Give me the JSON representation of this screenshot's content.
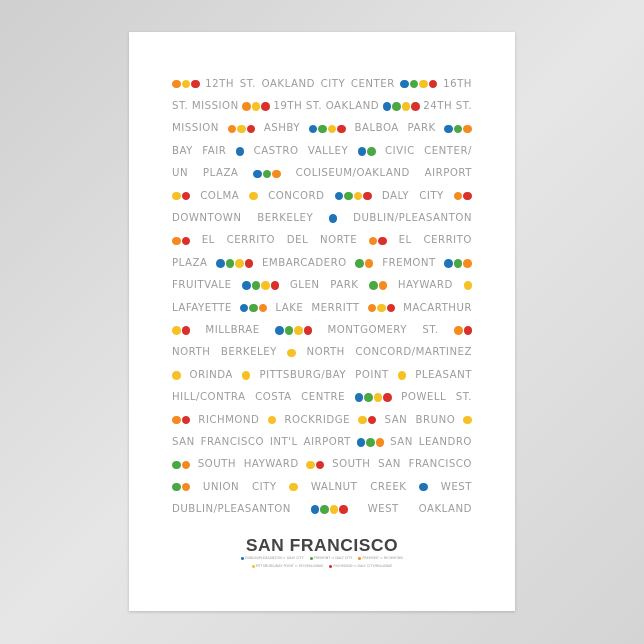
{
  "colors": {
    "b": "#1f74b8",
    "g": "#4aa843",
    "o": "#f58a1f",
    "y": "#f6c124",
    "r": "#d9302b"
  },
  "rows": [
    [
      {
        "d": "oyr"
      },
      {
        "t": "12TH ST. OAKLAND CITY CENTER"
      },
      {
        "d": "bgyr"
      },
      {
        "t": "16TH"
      }
    ],
    [
      {
        "t": "ST. MISSION"
      },
      {
        "d": "oyr"
      },
      {
        "t": "19TH ST. OAKLAND"
      },
      {
        "d": "bgyr"
      },
      {
        "t": "24TH ST."
      }
    ],
    [
      {
        "t": "MISSION"
      },
      {
        "d": "oyr"
      },
      {
        "t": "ASHBY"
      },
      {
        "d": "bgyr"
      },
      {
        "t": "BALBOA PARK"
      },
      {
        "d": "bgo"
      }
    ],
    [
      {
        "t": "BAY FAIR"
      },
      {
        "d": "b"
      },
      {
        "t": "CASTRO VALLEY"
      },
      {
        "d": "bg"
      },
      {
        "t": "CIVIC CENTER/"
      }
    ],
    [
      {
        "t": "UN PLAZA"
      },
      {
        "d": "bgo"
      },
      {
        "t": "COLISEUM/OAKLAND AIRPORT"
      }
    ],
    [
      {
        "d": "yr"
      },
      {
        "t": "COLMA"
      },
      {
        "d": "y"
      },
      {
        "t": "CONCORD"
      },
      {
        "d": "bgyr"
      },
      {
        "t": "DALY CITY"
      },
      {
        "d": "or"
      }
    ],
    [
      {
        "t": "DOWNTOWN BERKELEY"
      },
      {
        "d": "b"
      },
      {
        "t": "DUBLIN/PLEASANTON"
      }
    ],
    [
      {
        "d": "or"
      },
      {
        "t": "EL CERRITO DEL NORTE"
      },
      {
        "d": "or"
      },
      {
        "t": "EL CERRITO"
      }
    ],
    [
      {
        "t": "PLAZA"
      },
      {
        "d": "bgyr"
      },
      {
        "t": "EMBARCADERO"
      },
      {
        "d": "go"
      },
      {
        "t": "FREMONT"
      },
      {
        "d": "bgo"
      }
    ],
    [
      {
        "t": "FRUITVALE"
      },
      {
        "d": "bgyr"
      },
      {
        "t": "GLEN PARK"
      },
      {
        "d": "go"
      },
      {
        "t": "HAYWARD"
      },
      {
        "d": "y"
      }
    ],
    [
      {
        "t": "LAFAYETTE"
      },
      {
        "d": "bgo"
      },
      {
        "t": "LAKE MERRITT"
      },
      {
        "d": "oyr"
      },
      {
        "t": "MACARTHUR"
      }
    ],
    [
      {
        "d": "yr"
      },
      {
        "t": "MILLBRAE"
      },
      {
        "d": "bgyr"
      },
      {
        "t": "MONTGOMERY ST."
      },
      {
        "d": "or"
      }
    ],
    [
      {
        "t": "NORTH BERKELEY"
      },
      {
        "d": "y"
      },
      {
        "t": "NORTH CONCORD/MARTINEZ"
      }
    ],
    [
      {
        "d": "y"
      },
      {
        "t": "ORINDA"
      },
      {
        "d": "y"
      },
      {
        "t": "PITTSBURG/BAY POINT"
      },
      {
        "d": "y"
      },
      {
        "t": "PLEASANT"
      }
    ],
    [
      {
        "t": "HILL/CONTRA COSTA CENTRE"
      },
      {
        "d": "bgyr"
      },
      {
        "t": "POWELL ST."
      }
    ],
    [
      {
        "d": "or"
      },
      {
        "t": "RICHMOND"
      },
      {
        "d": "y"
      },
      {
        "t": "ROCKRIDGE"
      },
      {
        "d": "yr"
      },
      {
        "t": "SAN BRUNO"
      },
      {
        "d": "y"
      }
    ],
    [
      {
        "t": "SAN FRANCISCO INT'L AIRPORT"
      },
      {
        "d": "bgo"
      },
      {
        "t": "SAN LEANDRO"
      }
    ],
    [
      {
        "d": "go"
      },
      {
        "t": "SOUTH HAYWARD"
      },
      {
        "d": "yr"
      },
      {
        "t": "SOUTH SAN FRANCISCO"
      }
    ],
    [
      {
        "d": "go"
      },
      {
        "t": "UNION CITY"
      },
      {
        "d": "y"
      },
      {
        "t": "WALNUT CREEK"
      },
      {
        "d": "b"
      },
      {
        "t": "WEST"
      }
    ],
    [
      {
        "t": "DUBLIN/PLEASANTON"
      },
      {
        "d": "bgyr"
      },
      {
        "t": "WEST OAKLAND"
      }
    ]
  ],
  "title": "SAN FRANCISCO",
  "legend": [
    [
      {
        "c": "b",
        "label": "DUBLIN/PLEASANTON ⇔ DALY CITY"
      },
      {
        "c": "g",
        "label": "FREMONT ⇔ DALY CITY"
      },
      {
        "c": "o",
        "label": "FREMONT ⇔ RICHMOND"
      }
    ],
    [
      {
        "c": "y",
        "label": "PITTSBURG/BAY POINT ⇔ SFO/MILLBRAE"
      },
      {
        "c": "r",
        "label": "RICHMOND ⇔ DALY CITY/MILLBRAE"
      }
    ]
  ]
}
